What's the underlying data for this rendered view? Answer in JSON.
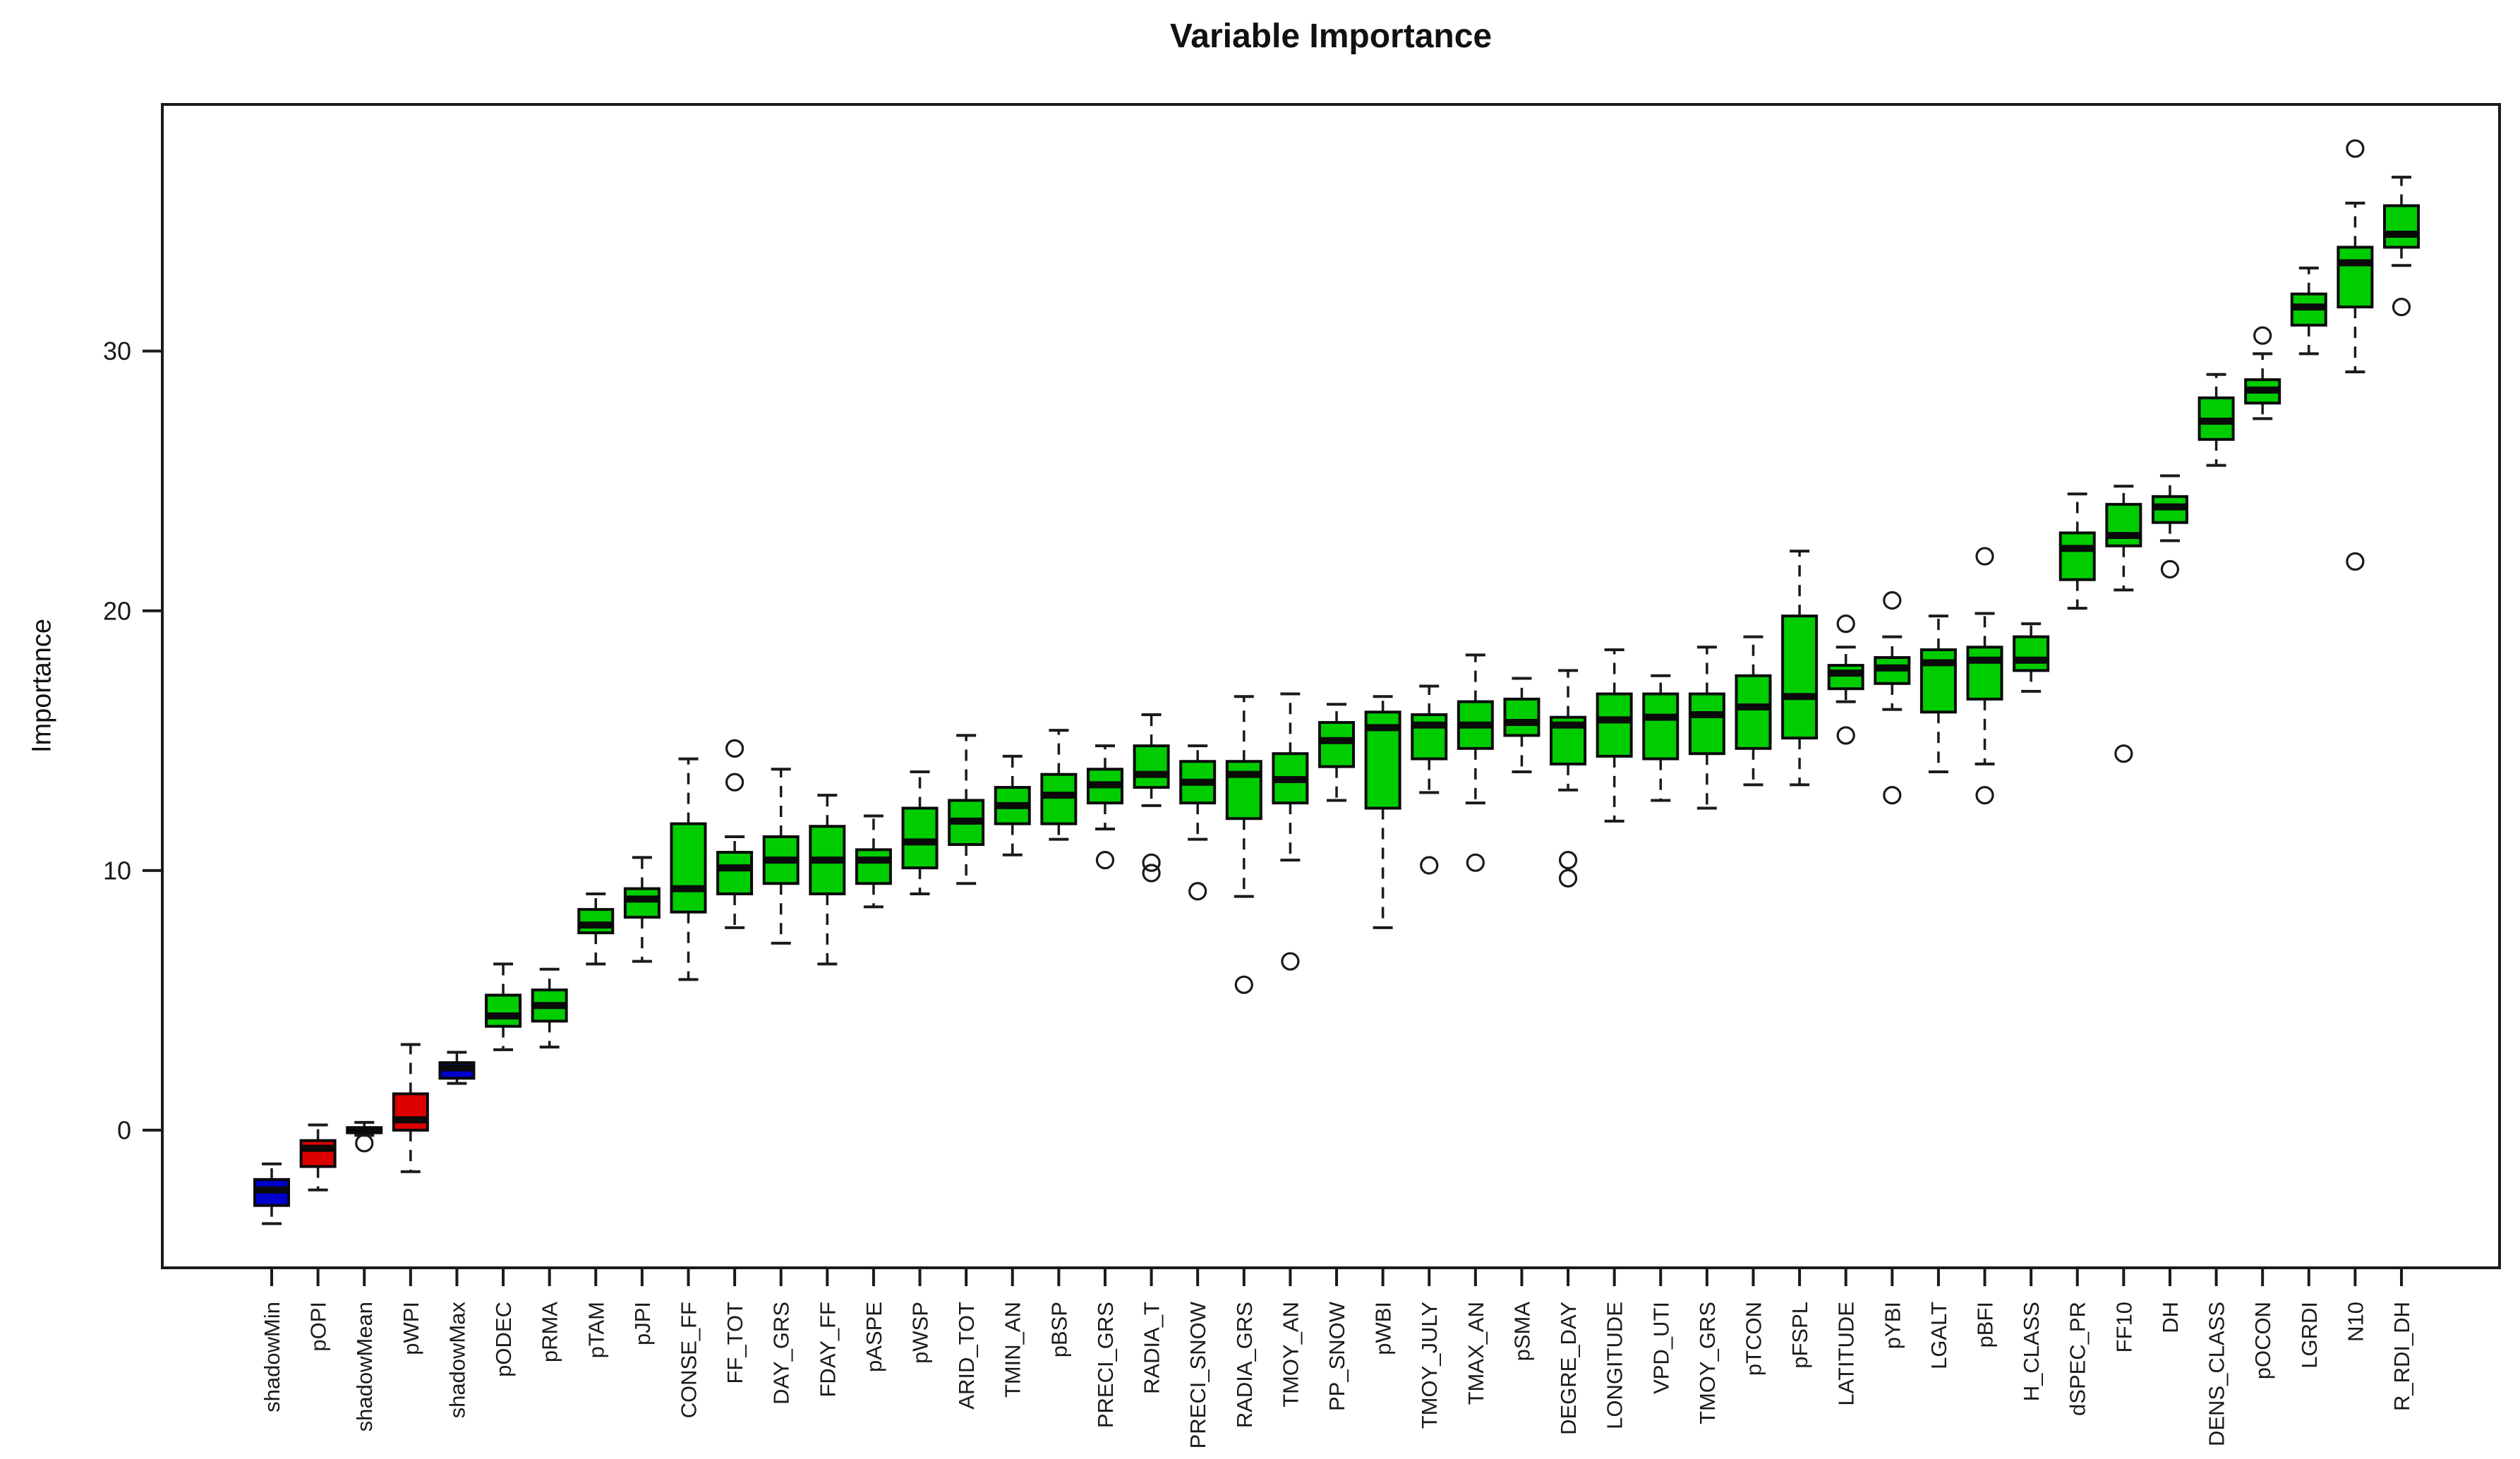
{
  "chart_data": {
    "type": "boxplot",
    "title": "Variable Importance",
    "ylabel": "Importance",
    "xlabel": "",
    "yticks": [
      0,
      10,
      20,
      30
    ],
    "ylim": [
      -5.3,
      39.5
    ],
    "grid": false,
    "legend": "none",
    "colors": {
      "green": "#00CD00",
      "blue": "#0000CC",
      "red": "#DD0000",
      "axis": "#1a1a1a"
    },
    "boxes": [
      {
        "label": "shadowMin",
        "color": "blue",
        "lo": -3.6,
        "q1": -2.9,
        "med": -2.3,
        "q3": -1.9,
        "hi": -1.3,
        "outliers": []
      },
      {
        "label": "pOPI",
        "color": "red",
        "lo": -2.3,
        "q1": -1.4,
        "med": -0.7,
        "q3": -0.4,
        "hi": 0.2,
        "outliers": []
      },
      {
        "label": "shadowMean",
        "color": "blue",
        "lo": -0.2,
        "q1": -0.1,
        "med": 0.0,
        "q3": 0.1,
        "hi": 0.3,
        "outliers": [
          -0.5
        ]
      },
      {
        "label": "pWPI",
        "color": "red",
        "lo": -1.6,
        "q1": 0.0,
        "med": 0.4,
        "q3": 1.4,
        "hi": 3.3,
        "outliers": []
      },
      {
        "label": "shadowMax",
        "color": "blue",
        "lo": 1.8,
        "q1": 2.0,
        "med": 2.4,
        "q3": 2.6,
        "hi": 3.0,
        "outliers": []
      },
      {
        "label": "pODEC",
        "color": "green",
        "lo": 3.1,
        "q1": 4.0,
        "med": 4.4,
        "q3": 5.2,
        "hi": 6.4,
        "outliers": []
      },
      {
        "label": "pRMA",
        "color": "green",
        "lo": 3.2,
        "q1": 4.2,
        "med": 4.8,
        "q3": 5.4,
        "hi": 6.2,
        "outliers": []
      },
      {
        "label": "pTAM",
        "color": "green",
        "lo": 6.4,
        "q1": 7.6,
        "med": 7.9,
        "q3": 8.5,
        "hi": 9.1,
        "outliers": []
      },
      {
        "label": "pJPI",
        "color": "green",
        "lo": 6.5,
        "q1": 8.2,
        "med": 8.9,
        "q3": 9.3,
        "hi": 10.5,
        "outliers": []
      },
      {
        "label": "CONSE_FF",
        "color": "green",
        "lo": 5.8,
        "q1": 8.4,
        "med": 9.3,
        "q3": 11.8,
        "hi": 14.3,
        "outliers": []
      },
      {
        "label": "FF_TOT",
        "color": "green",
        "lo": 7.8,
        "q1": 9.1,
        "med": 10.1,
        "q3": 10.7,
        "hi": 11.3,
        "outliers": [
          14.7,
          13.4
        ]
      },
      {
        "label": "DAY_GRS",
        "color": "green",
        "lo": 7.2,
        "q1": 9.5,
        "med": 10.4,
        "q3": 11.3,
        "hi": 13.9,
        "outliers": []
      },
      {
        "label": "FDAY_FF",
        "color": "green",
        "lo": 6.4,
        "q1": 9.1,
        "med": 10.4,
        "q3": 11.7,
        "hi": 12.9,
        "outliers": []
      },
      {
        "label": "pASPE",
        "color": "green",
        "lo": 8.6,
        "q1": 9.5,
        "med": 10.4,
        "q3": 10.8,
        "hi": 12.1,
        "outliers": []
      },
      {
        "label": "pWSP",
        "color": "green",
        "lo": 9.1,
        "q1": 10.1,
        "med": 11.1,
        "q3": 12.4,
        "hi": 13.8,
        "outliers": []
      },
      {
        "label": "ARID_TOT",
        "color": "green",
        "lo": 9.5,
        "q1": 11.0,
        "med": 11.9,
        "q3": 12.7,
        "hi": 15.2,
        "outliers": []
      },
      {
        "label": "TMIN_AN",
        "color": "green",
        "lo": 10.6,
        "q1": 11.8,
        "med": 12.5,
        "q3": 13.2,
        "hi": 14.4,
        "outliers": []
      },
      {
        "label": "pBSP",
        "color": "green",
        "lo": 11.2,
        "q1": 11.8,
        "med": 12.9,
        "q3": 13.7,
        "hi": 15.4,
        "outliers": []
      },
      {
        "label": "PRECI_GRS",
        "color": "green",
        "lo": 11.6,
        "q1": 12.6,
        "med": 13.3,
        "q3": 13.9,
        "hi": 14.8,
        "outliers": [
          10.4
        ]
      },
      {
        "label": "RADIA_T",
        "color": "green",
        "lo": 12.5,
        "q1": 13.2,
        "med": 13.7,
        "q3": 14.8,
        "hi": 16.0,
        "outliers": [
          10.3,
          9.9
        ]
      },
      {
        "label": "PRECI_SNOW",
        "color": "green",
        "lo": 11.2,
        "q1": 12.6,
        "med": 13.4,
        "q3": 14.2,
        "hi": 14.8,
        "outliers": [
          9.2
        ]
      },
      {
        "label": "RADIA_GRS",
        "color": "green",
        "lo": 9.0,
        "q1": 12.0,
        "med": 13.7,
        "q3": 14.2,
        "hi": 16.7,
        "outliers": [
          5.6
        ]
      },
      {
        "label": "TMOY_AN",
        "color": "green",
        "lo": 10.4,
        "q1": 12.6,
        "med": 13.5,
        "q3": 14.5,
        "hi": 16.8,
        "outliers": [
          6.5
        ]
      },
      {
        "label": "PP_SNOW",
        "color": "green",
        "lo": 12.7,
        "q1": 14.0,
        "med": 15.0,
        "q3": 15.7,
        "hi": 16.4,
        "outliers": []
      },
      {
        "label": "pWBI",
        "color": "green",
        "lo": 7.8,
        "q1": 12.4,
        "med": 15.5,
        "q3": 16.1,
        "hi": 16.7,
        "outliers": []
      },
      {
        "label": "TMOY_JULY",
        "color": "green",
        "lo": 13.0,
        "q1": 14.3,
        "med": 15.6,
        "q3": 16.0,
        "hi": 17.1,
        "outliers": [
          10.2
        ]
      },
      {
        "label": "TMAX_AN",
        "color": "green",
        "lo": 12.6,
        "q1": 14.7,
        "med": 15.6,
        "q3": 16.5,
        "hi": 18.3,
        "outliers": [
          10.3
        ]
      },
      {
        "label": "pSMA",
        "color": "green",
        "lo": 13.8,
        "q1": 15.2,
        "med": 15.7,
        "q3": 16.6,
        "hi": 17.4,
        "outliers": []
      },
      {
        "label": "DEGRE_DAY",
        "color": "green",
        "lo": 13.1,
        "q1": 14.1,
        "med": 15.6,
        "q3": 15.9,
        "hi": 17.7,
        "outliers": [
          10.4,
          9.7
        ]
      },
      {
        "label": "LONGITUDE",
        "color": "green",
        "lo": 11.9,
        "q1": 14.4,
        "med": 15.8,
        "q3": 16.8,
        "hi": 18.5,
        "outliers": []
      },
      {
        "label": "VPD_UTI",
        "color": "green",
        "lo": 12.7,
        "q1": 14.3,
        "med": 15.9,
        "q3": 16.8,
        "hi": 17.5,
        "outliers": []
      },
      {
        "label": "TMOY_GRS",
        "color": "green",
        "lo": 12.4,
        "q1": 14.5,
        "med": 16.0,
        "q3": 16.8,
        "hi": 18.6,
        "outliers": []
      },
      {
        "label": "pTCON",
        "color": "green",
        "lo": 13.3,
        "q1": 14.7,
        "med": 16.3,
        "q3": 17.5,
        "hi": 19.0,
        "outliers": []
      },
      {
        "label": "pFSPL",
        "color": "green",
        "lo": 13.3,
        "q1": 15.1,
        "med": 16.7,
        "q3": 19.8,
        "hi": 22.3,
        "outliers": []
      },
      {
        "label": "LATITUDE",
        "color": "green",
        "lo": 16.5,
        "q1": 17.0,
        "med": 17.6,
        "q3": 17.9,
        "hi": 18.6,
        "outliers": [
          19.5,
          15.2
        ]
      },
      {
        "label": "pYBI",
        "color": "green",
        "lo": 16.2,
        "q1": 17.2,
        "med": 17.8,
        "q3": 18.2,
        "hi": 19.0,
        "outliers": [
          20.4,
          12.9
        ]
      },
      {
        "label": "LGALT",
        "color": "green",
        "lo": 13.8,
        "q1": 16.1,
        "med": 18.0,
        "q3": 18.5,
        "hi": 19.8,
        "outliers": []
      },
      {
        "label": "pBFI",
        "color": "green",
        "lo": 14.1,
        "q1": 16.6,
        "med": 18.1,
        "q3": 18.6,
        "hi": 19.9,
        "outliers": [
          22.1,
          12.9
        ]
      },
      {
        "label": "H_CLASS",
        "color": "green",
        "lo": 16.9,
        "q1": 17.7,
        "med": 18.1,
        "q3": 19.0,
        "hi": 19.5,
        "outliers": []
      },
      {
        "label": "dSPEC_PR",
        "color": "green",
        "lo": 20.1,
        "q1": 21.2,
        "med": 22.4,
        "q3": 23.0,
        "hi": 24.5,
        "outliers": []
      },
      {
        "label": "FF10",
        "color": "green",
        "lo": 20.8,
        "q1": 22.5,
        "med": 22.9,
        "q3": 24.1,
        "hi": 24.8,
        "outliers": [
          14.5
        ]
      },
      {
        "label": "DH",
        "color": "green",
        "lo": 22.7,
        "q1": 23.4,
        "med": 24.0,
        "q3": 24.4,
        "hi": 25.2,
        "outliers": [
          21.6
        ]
      },
      {
        "label": "DENS_CLASS",
        "color": "green",
        "lo": 25.6,
        "q1": 26.6,
        "med": 27.3,
        "q3": 28.2,
        "hi": 29.1,
        "outliers": []
      },
      {
        "label": "pOCON",
        "color": "green",
        "lo": 27.4,
        "q1": 28.0,
        "med": 28.5,
        "q3": 28.9,
        "hi": 29.9,
        "outliers": [
          30.6
        ]
      },
      {
        "label": "LGRDI",
        "color": "green",
        "lo": 29.9,
        "q1": 31.0,
        "med": 31.7,
        "q3": 32.2,
        "hi": 33.2,
        "outliers": []
      },
      {
        "label": "N10",
        "color": "green",
        "lo": 29.2,
        "q1": 31.7,
        "med": 33.4,
        "q3": 34.0,
        "hi": 35.7,
        "outliers": [
          37.8,
          21.9
        ]
      },
      {
        "label": "R_RDI_DH",
        "color": "green",
        "lo": 33.3,
        "q1": 34.0,
        "med": 34.5,
        "q3": 35.6,
        "hi": 36.7,
        "outliers": [
          31.7
        ]
      }
    ]
  }
}
